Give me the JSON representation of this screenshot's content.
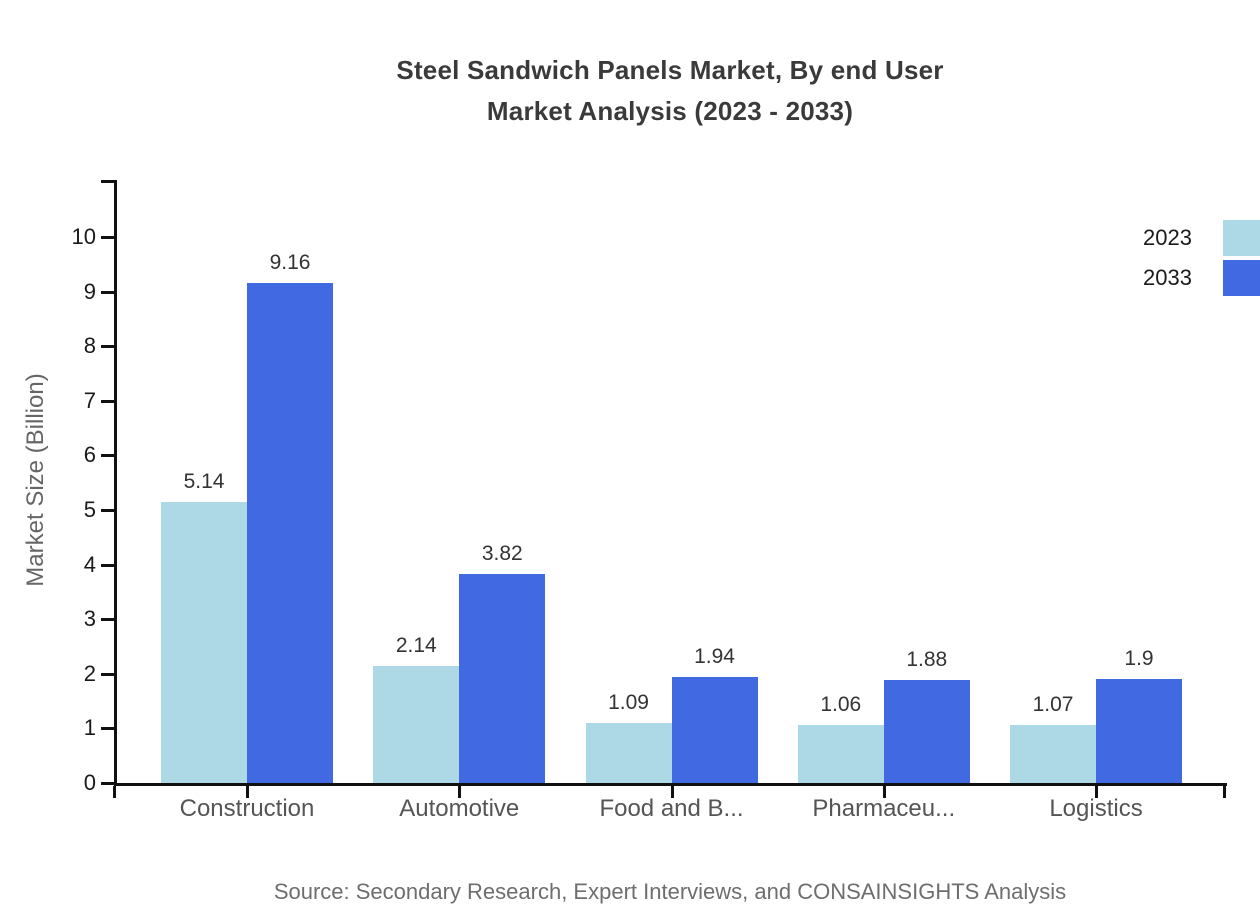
{
  "chart_data": {
    "type": "bar",
    "title_lines": [
      "Steel Sandwich Panels Market, By end User",
      "Market Analysis (2023 - 2033)"
    ],
    "categories": [
      "Construction",
      "Automotive",
      "Food and B...",
      "Pharmaceu...",
      "Logistics"
    ],
    "series": [
      {
        "name": "2023",
        "color": "#ADD8E6",
        "values": [
          5.14,
          2.14,
          1.09,
          1.06,
          1.07
        ]
      },
      {
        "name": "2033",
        "color": "#4169E1",
        "values": [
          9.16,
          3.82,
          1.94,
          1.88,
          1.9
        ]
      }
    ],
    "xlabel": "",
    "ylabel": "Market Size (Billion)",
    "yticks": [
      0,
      1,
      2,
      3,
      4,
      5,
      6,
      7,
      8,
      9,
      10
    ],
    "ylim": [
      0,
      11
    ],
    "grid": false,
    "value_labels": true,
    "legend_position": "top-right",
    "source": "Source: Secondary Research, Expert Interviews, and CONSAINSIGHTS Analysis",
    "colors": {
      "axis": "#111111",
      "y_tick_label": "#1a1a1a",
      "category_label": "#555555",
      "value_label": "#333333",
      "title": "#3a3a3a",
      "muted_text": "#6e6e6e"
    }
  }
}
